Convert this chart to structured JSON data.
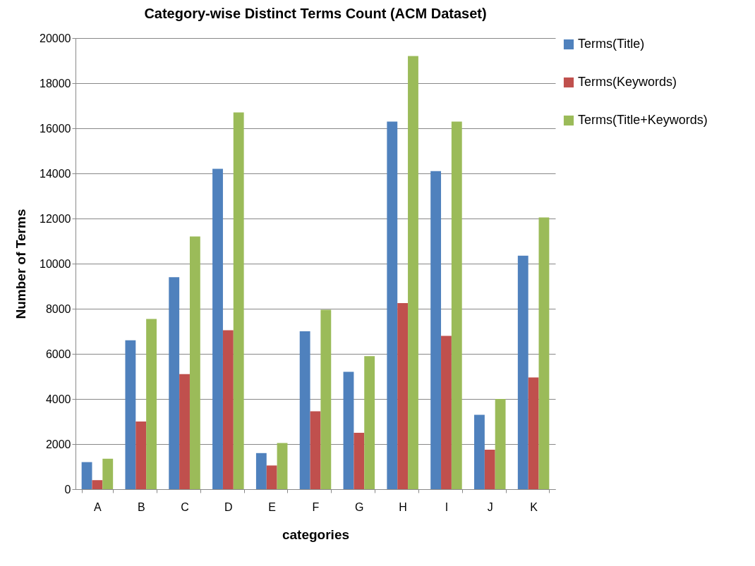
{
  "chart_data": {
    "type": "bar",
    "title": "Category-wise Distinct Terms Count (ACM Dataset)",
    "xlabel": "categories",
    "ylabel": "Number of Terms",
    "categories": [
      "A",
      "B",
      "C",
      "D",
      "E",
      "F",
      "G",
      "H",
      "I",
      "J",
      "K"
    ],
    "series": [
      {
        "name": "Terms(Title)",
        "color": "#4f81bd",
        "values": [
          1200,
          6600,
          9400,
          14200,
          1600,
          7000,
          5200,
          16300,
          14100,
          3300,
          10350
        ]
      },
      {
        "name": "Terms(Keywords)",
        "color": "#c0504d",
        "values": [
          400,
          3000,
          5100,
          7050,
          1050,
          3450,
          2500,
          8250,
          6800,
          1750,
          4950
        ]
      },
      {
        "name": "Terms(Title+Keywords)",
        "color": "#9bbb59",
        "values": [
          1350,
          7550,
          11200,
          16700,
          2050,
          7950,
          5900,
          19200,
          16300,
          4000,
          12050
        ]
      }
    ],
    "ylim": [
      0,
      20000
    ],
    "yticks": [
      0,
      2000,
      4000,
      6000,
      8000,
      10000,
      12000,
      14000,
      16000,
      18000,
      20000
    ],
    "grid": "y",
    "legend": "top right"
  }
}
